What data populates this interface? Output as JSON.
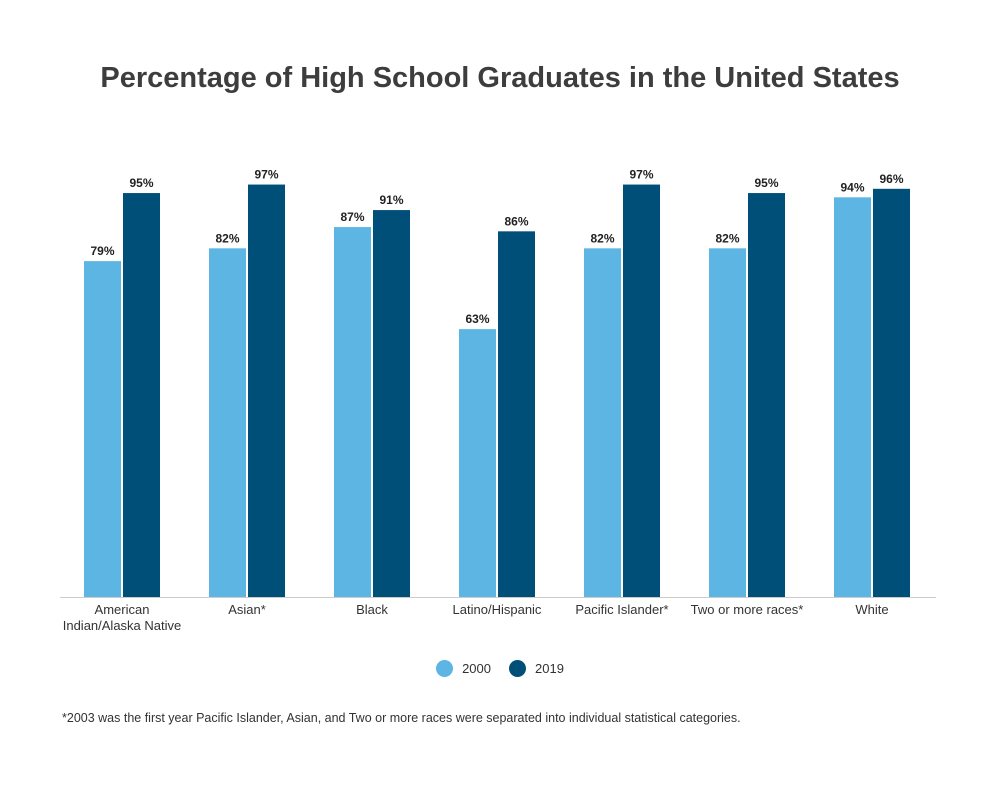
{
  "title": "Percentage of High School Graduates in the United States",
  "footnote": "*2003 was the first year Pacific Islander, Asian, and Two or more races were separated into individual statistical categories.",
  "colors": {
    "s2000": "#5db5e4",
    "s2019": "#004f78",
    "axis": "#cccccc"
  },
  "chart_data": {
    "type": "bar",
    "title": "Percentage of High School Graduates in the United States",
    "xlabel": "",
    "ylabel": "",
    "ylim": [
      0,
      100
    ],
    "grid": false,
    "legend": "bottom-center",
    "categories": [
      [
        "American",
        "Indian/Alaska Native"
      ],
      [
        "Asian*"
      ],
      [
        "Black"
      ],
      [
        "Latino/Hispanic"
      ],
      [
        "Pacific Islander*"
      ],
      [
        "Two or more races*"
      ],
      [
        "White"
      ]
    ],
    "series": [
      {
        "name": "2000",
        "values": [
          79,
          82,
          87,
          63,
          82,
          82,
          94
        ],
        "labels": [
          "79%",
          "82%",
          "87%",
          "63%",
          "82%",
          "82%",
          "94%"
        ]
      },
      {
        "name": "2019",
        "values": [
          95,
          97,
          91,
          86,
          97,
          95,
          96
        ],
        "labels": [
          "95%",
          "97%",
          "91%",
          "86%",
          "97%",
          "95%",
          "96%"
        ]
      }
    ]
  }
}
